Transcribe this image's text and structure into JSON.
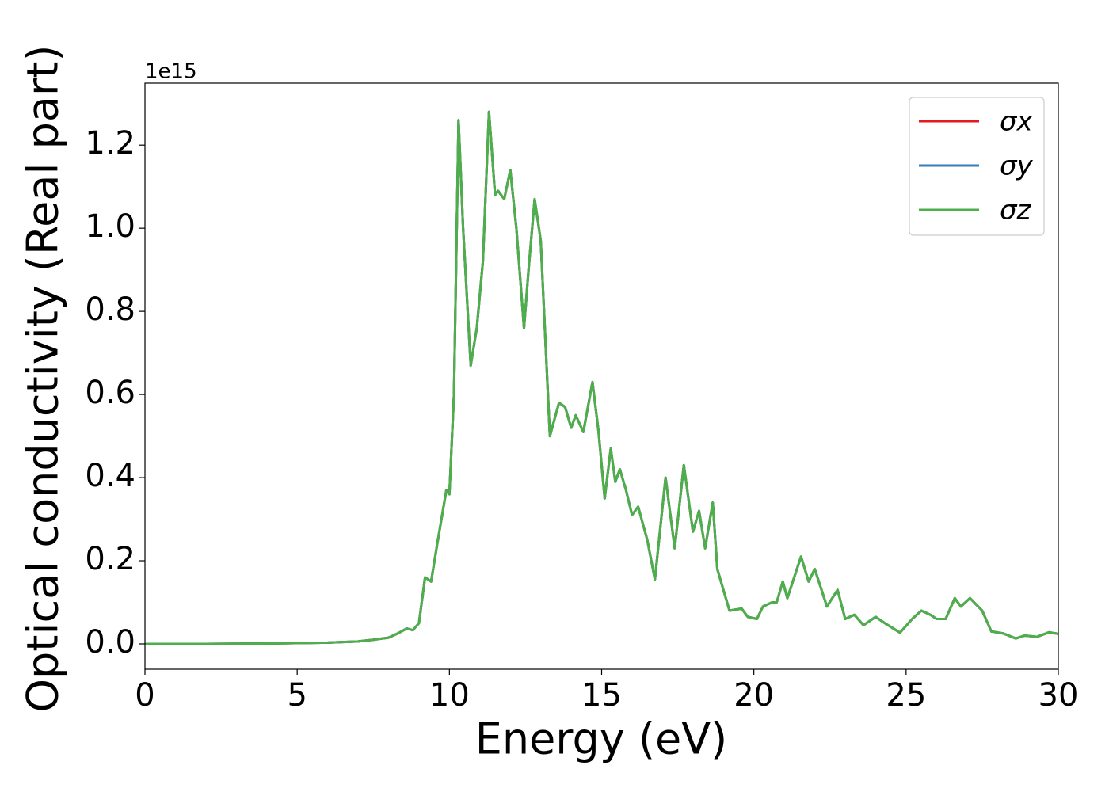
{
  "chart_data": {
    "type": "line",
    "xlabel": "Energy (eV)",
    "ylabel": "Optical conductivity (Real part)",
    "y_offset_label": "1e15",
    "legend": "upper right",
    "xlim": [
      0,
      30
    ],
    "ylim": [
      -0.061,
      1.349
    ],
    "xticks": [
      0,
      5,
      10,
      15,
      20,
      25,
      30
    ],
    "yticks": [
      {
        "value": 0,
        "label": "0.0"
      },
      0.2,
      0.4,
      0.6,
      0.8,
      {
        "value": 1,
        "label": "1.0"
      },
      1.2
    ],
    "x": [
      0,
      2,
      4,
      6,
      7,
      7.5,
      8,
      8.3,
      8.6,
      8.8,
      9.0,
      9.2,
      9.4,
      9.6,
      9.9,
      10.0,
      10.15,
      10.3,
      10.45,
      10.7,
      10.9,
      11.1,
      11.3,
      11.5,
      11.6,
      11.8,
      12.0,
      12.2,
      12.45,
      12.6,
      12.8,
      13.0,
      13.3,
      13.6,
      13.8,
      14.0,
      14.15,
      14.4,
      14.7,
      14.9,
      15.1,
      15.3,
      15.45,
      15.6,
      15.8,
      16.0,
      16.2,
      16.5,
      16.75,
      17.1,
      17.4,
      17.7,
      18.0,
      18.2,
      18.4,
      18.65,
      18.8,
      19.2,
      19.6,
      19.8,
      20.1,
      20.3,
      20.6,
      20.75,
      20.95,
      21.1,
      21.55,
      21.8,
      22.0,
      22.4,
      22.75,
      23.0,
      23.3,
      23.6,
      24.0,
      24.3,
      24.8,
      25.2,
      25.5,
      25.8,
      26.0,
      26.3,
      26.6,
      26.8,
      27.1,
      27.5,
      27.8,
      28.2,
      28.6,
      28.9,
      29.3,
      29.7,
      30
    ],
    "series": [
      {
        "name": "σx",
        "color": "#e41a1c",
        "values": [
          0,
          0,
          0.001,
          0.003,
          0.006,
          0.01,
          0.015,
          0.025,
          0.037,
          0.033,
          0.05,
          0.16,
          0.15,
          0.24,
          0.37,
          0.36,
          0.6,
          1.26,
          1.0,
          0.67,
          0.76,
          0.92,
          1.28,
          1.08,
          1.09,
          1.07,
          1.14,
          1.0,
          0.76,
          0.9,
          1.07,
          0.97,
          0.5,
          0.58,
          0.57,
          0.52,
          0.55,
          0.51,
          0.63,
          0.51,
          0.35,
          0.47,
          0.39,
          0.42,
          0.37,
          0.31,
          0.33,
          0.25,
          0.155,
          0.4,
          0.23,
          0.43,
          0.27,
          0.32,
          0.23,
          0.34,
          0.18,
          0.08,
          0.085,
          0.065,
          0.06,
          0.09,
          0.1,
          0.1,
          0.15,
          0.11,
          0.21,
          0.15,
          0.18,
          0.09,
          0.13,
          0.06,
          0.07,
          0.045,
          0.065,
          0.05,
          0.027,
          0.06,
          0.08,
          0.07,
          0.06,
          0.06,
          0.11,
          0.09,
          0.11,
          0.08,
          0.03,
          0.025,
          0.013,
          0.02,
          0.017,
          0.028,
          0.024
        ]
      },
      {
        "name": "σy",
        "color": "#377eb8",
        "values": [
          0,
          0,
          0.001,
          0.003,
          0.006,
          0.01,
          0.015,
          0.025,
          0.037,
          0.033,
          0.05,
          0.16,
          0.15,
          0.24,
          0.37,
          0.36,
          0.6,
          1.26,
          1.0,
          0.67,
          0.76,
          0.92,
          1.28,
          1.08,
          1.09,
          1.07,
          1.14,
          1.0,
          0.76,
          0.9,
          1.07,
          0.97,
          0.5,
          0.58,
          0.57,
          0.52,
          0.55,
          0.51,
          0.63,
          0.51,
          0.35,
          0.47,
          0.39,
          0.42,
          0.37,
          0.31,
          0.33,
          0.25,
          0.155,
          0.4,
          0.23,
          0.43,
          0.27,
          0.32,
          0.23,
          0.34,
          0.18,
          0.08,
          0.085,
          0.065,
          0.06,
          0.09,
          0.1,
          0.1,
          0.15,
          0.11,
          0.21,
          0.15,
          0.18,
          0.09,
          0.13,
          0.06,
          0.07,
          0.045,
          0.065,
          0.05,
          0.027,
          0.06,
          0.08,
          0.07,
          0.06,
          0.06,
          0.11,
          0.09,
          0.11,
          0.08,
          0.03,
          0.025,
          0.013,
          0.02,
          0.017,
          0.028,
          0.024
        ]
      },
      {
        "name": "σz",
        "color": "#4daf4a",
        "values": [
          0,
          0,
          0.001,
          0.003,
          0.006,
          0.01,
          0.015,
          0.025,
          0.037,
          0.033,
          0.05,
          0.16,
          0.15,
          0.24,
          0.37,
          0.36,
          0.6,
          1.26,
          1.0,
          0.67,
          0.76,
          0.92,
          1.28,
          1.08,
          1.09,
          1.07,
          1.14,
          1.0,
          0.76,
          0.9,
          1.07,
          0.97,
          0.5,
          0.58,
          0.57,
          0.52,
          0.55,
          0.51,
          0.63,
          0.51,
          0.35,
          0.47,
          0.39,
          0.42,
          0.37,
          0.31,
          0.33,
          0.25,
          0.155,
          0.4,
          0.23,
          0.43,
          0.27,
          0.32,
          0.23,
          0.34,
          0.18,
          0.08,
          0.085,
          0.065,
          0.06,
          0.09,
          0.1,
          0.1,
          0.15,
          0.11,
          0.21,
          0.15,
          0.18,
          0.09,
          0.13,
          0.06,
          0.07,
          0.045,
          0.065,
          0.05,
          0.027,
          0.06,
          0.08,
          0.07,
          0.06,
          0.06,
          0.11,
          0.09,
          0.11,
          0.08,
          0.03,
          0.025,
          0.013,
          0.02,
          0.017,
          0.028,
          0.024
        ]
      }
    ]
  }
}
